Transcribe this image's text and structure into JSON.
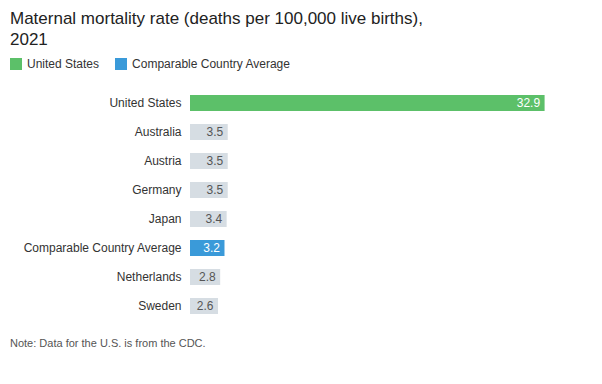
{
  "chart_data": {
    "type": "bar",
    "orientation": "horizontal",
    "title": "Maternal mortality rate (deaths per 100,000 live births),\n2021",
    "categories": [
      "United States",
      "Australia",
      "Austria",
      "Germany",
      "Japan",
      "Comparable Country Average",
      "Netherlands",
      "Sweden"
    ],
    "series": [
      {
        "name": "United States",
        "color": "#5cc069",
        "values": [
          32.9,
          null,
          null,
          null,
          null,
          null,
          null,
          null
        ]
      },
      {
        "name": "Comparable Country Average",
        "color": "#3a9ad9",
        "values": [
          null,
          null,
          null,
          null,
          null,
          3.2,
          null,
          null
        ]
      },
      {
        "color": "#d6dde3",
        "values": [
          null,
          3.5,
          3.5,
          3.5,
          3.4,
          null,
          2.8,
          2.6
        ]
      }
    ],
    "xlim": [
      0,
      36
    ],
    "data_labels": true,
    "tick_labels": "y",
    "legend": "upper left",
    "note": "Note: Data for the U.S. is from the CDC."
  }
}
